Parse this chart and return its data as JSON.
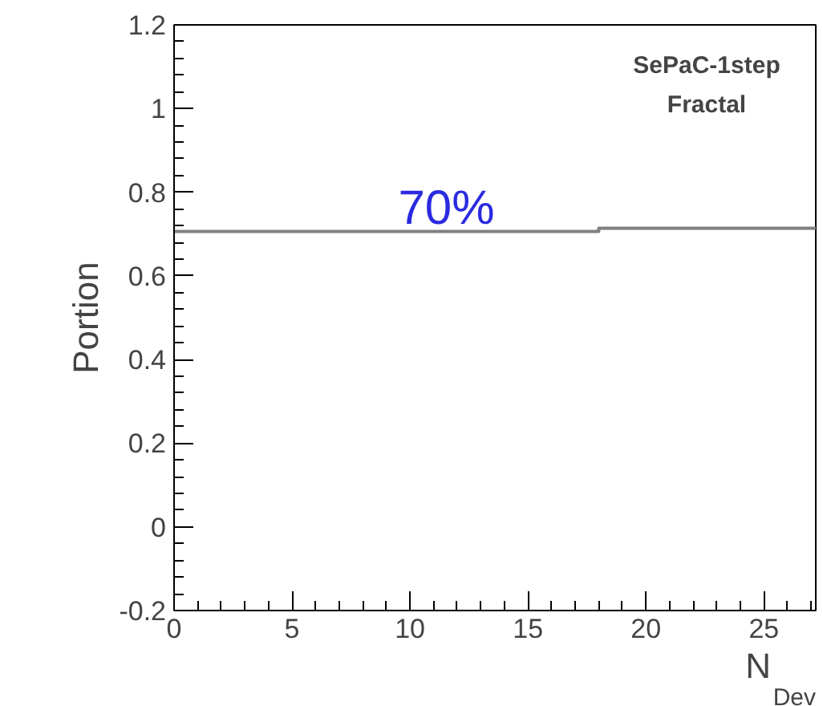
{
  "chart_data": {
    "type": "step",
    "xlabel": "N$_{Dev}$",
    "ylabel": "Portion",
    "x": [
      0,
      18,
      27.2
    ],
    "series": [
      {
        "color": "#808080",
        "values": [
          0.706,
          0.714,
          0.714
        ]
      }
    ],
    "xlim": [
      0,
      27.2
    ],
    "ylim": [
      -0.2,
      1.2
    ],
    "xticks": [
      0,
      5,
      10,
      15,
      20,
      25
    ],
    "yticks": [
      -0.2,
      0,
      0.2,
      0.4,
      0.6,
      0.8,
      1,
      1.2
    ],
    "grid": false,
    "marker": "none",
    "line_style": "solid",
    "annotations": [
      "SePaC-1step",
      "Fractal",
      {
        "text": "70%",
        "x": 9.5,
        "y": 0.706
      }
    ]
  }
}
